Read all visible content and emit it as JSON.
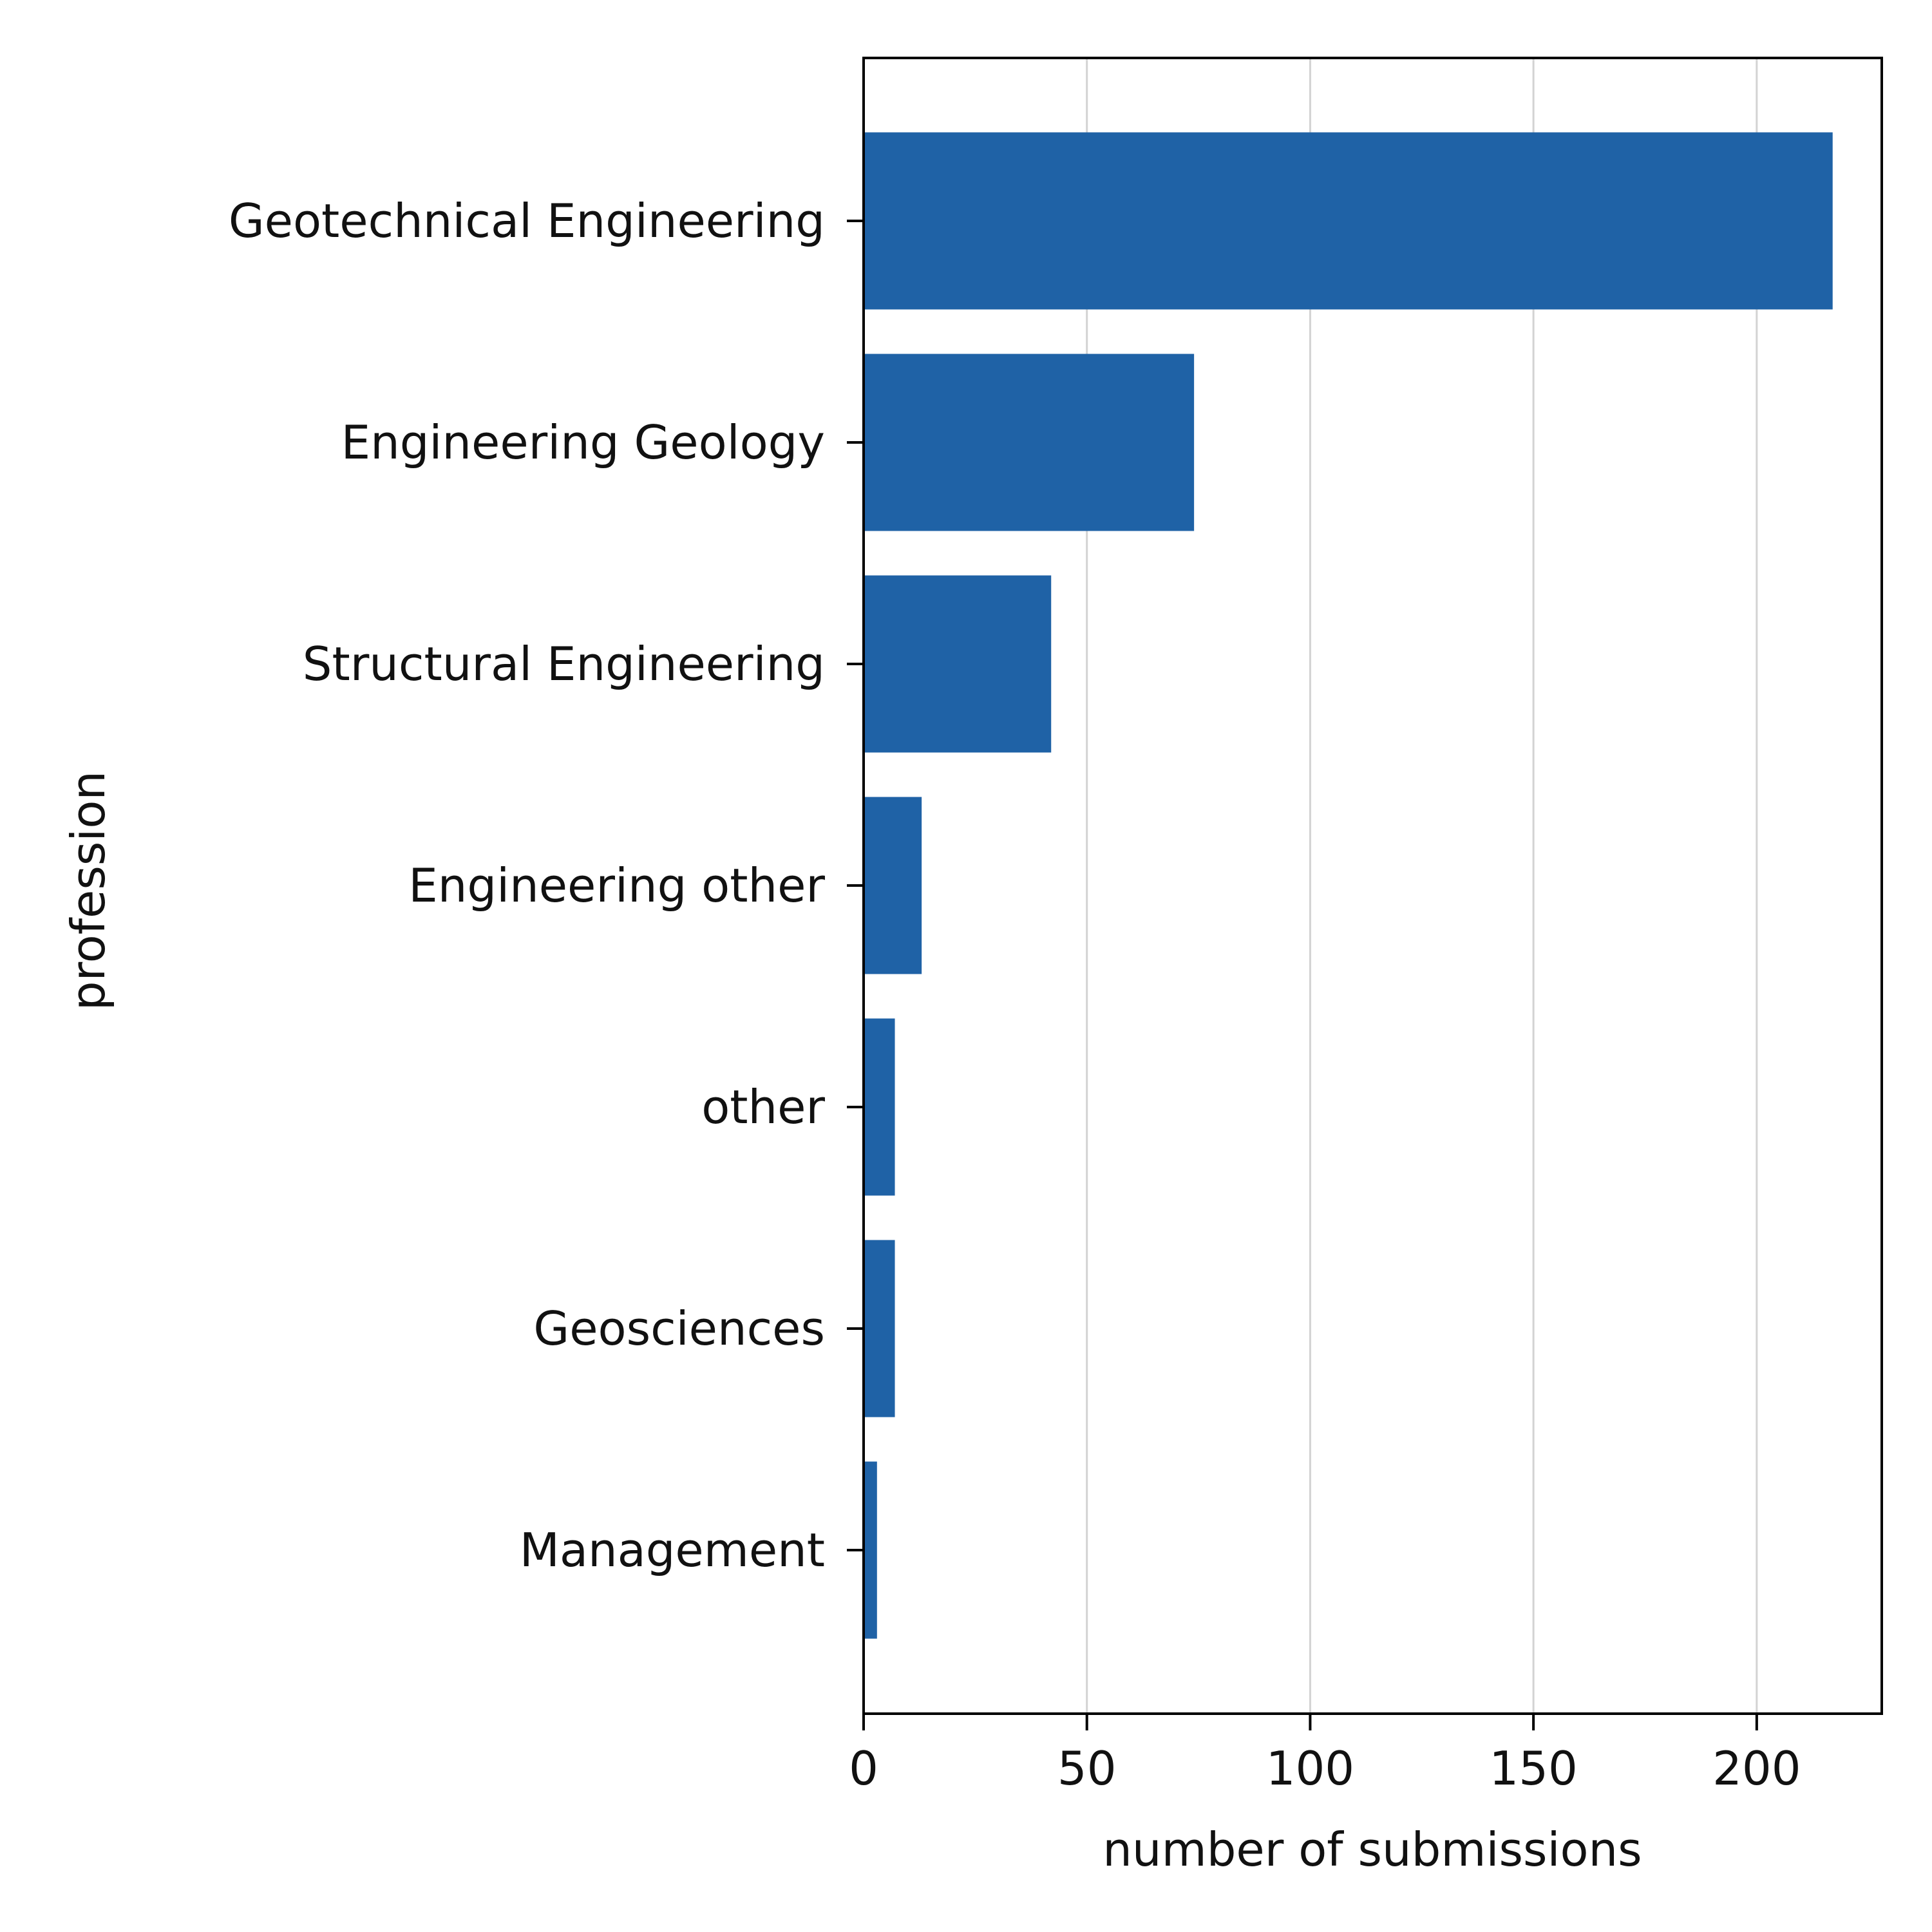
{
  "chart_data": {
    "type": "bar",
    "orientation": "horizontal",
    "categories": [
      "Geotechnical Engineering",
      "Engineering Geology",
      "Structural Engineering",
      "Engineering other",
      "other",
      "Geosciences",
      "Management"
    ],
    "values": [
      217,
      74,
      42,
      13,
      7,
      7,
      3
    ],
    "xlabel": "number of submissions",
    "ylabel": "profession",
    "xlim": [
      0,
      228
    ],
    "xticks": [
      0,
      50,
      100,
      150,
      200
    ],
    "grid": "vertical",
    "legend": "none",
    "colors": {
      "bar": "#1f62a6",
      "grid": "#d3d3d3",
      "axis": "#000000"
    }
  }
}
